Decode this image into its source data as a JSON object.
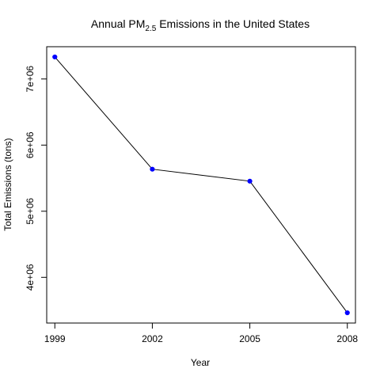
{
  "chart_data": {
    "type": "line",
    "title": {
      "prefix": "Annual PM",
      "subscript": "2.5",
      "suffix": " Emissions in the United States"
    },
    "xlabel": "Year",
    "ylabel": "Total Emissions (tons)",
    "x": [
      1999,
      2002,
      2005,
      2008
    ],
    "x_tick_labels": [
      "1999",
      "2002",
      "2005",
      "2008"
    ],
    "series": [
      {
        "values": [
          7332967,
          5635780,
          5454703,
          3464206
        ]
      }
    ],
    "xlim": [
      1998.75,
      2008.25
    ],
    "ylim": [
      3309000,
      7488000
    ],
    "y_ticks": [
      4000000,
      5000000,
      6000000,
      7000000
    ],
    "y_tick_labels": [
      "4e+06",
      "5e+06",
      "6e+06",
      "7e+06"
    ],
    "grid": false,
    "legend": "none",
    "colors": {
      "line": "#000000",
      "points": "#0000ff",
      "axes": "#000000"
    }
  }
}
